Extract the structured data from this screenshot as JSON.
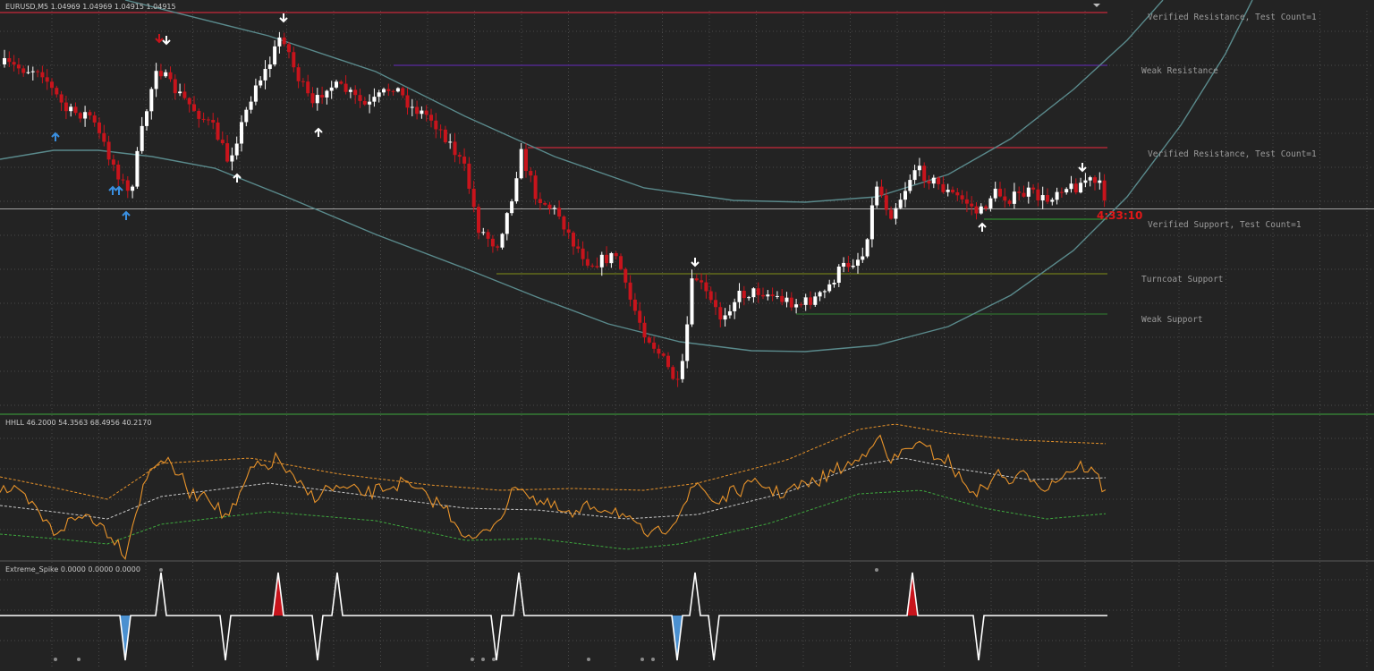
{
  "window": {
    "symbol_line": "EURUSD,M5 1.04969 1.04969 1.04915 1.04915",
    "countdown": "4:33:10"
  },
  "colors": {
    "background": "#232323",
    "grid": "#4a4a4a",
    "bull_candle": "#ffffff",
    "bear_candle": "#c8141c",
    "envelope": "#5a8a8c",
    "arrow_buy_signal": "#3a8fe0",
    "arrow_fractal": "#ffffff",
    "hhll_line": "#e8932a",
    "hhll_upper": "#e8932a",
    "hhll_mid": "#c8c8c8",
    "hhll_lower": "#3ea83e",
    "spike_line": "#ffffff",
    "spike_up_fill": "#c8141c",
    "spike_down_fill": "#4a90d0",
    "dot": "#8a8a8a"
  },
  "zones": [
    {
      "label": "Verified Resistance, Test Count=1",
      "type": "verified-resistance",
      "color": "#c8283a"
    },
    {
      "label": "Weak Resistance",
      "type": "weak-resistance",
      "color": "#5a2aa0"
    },
    {
      "label": "Verified Resistance, Test Count=1",
      "type": "verified-resistance",
      "color": "#c8283a"
    },
    {
      "label": "Verified Support, Test Count=1",
      "type": "verified-support",
      "color": "#2e8a2e"
    },
    {
      "label": "Turncoat Support",
      "type": "turncoat-support",
      "color": "#6e7a1a"
    },
    {
      "label": "Weak Support",
      "type": "weak-support",
      "color": "#2e6e2e"
    }
  ],
  "indicators": {
    "hhll_title": "HHLL 46.2000 54.3563 68.4956 40.2170",
    "spike_title": "Extreme_Spike 0.0000 0.0000 0.0000"
  }
}
